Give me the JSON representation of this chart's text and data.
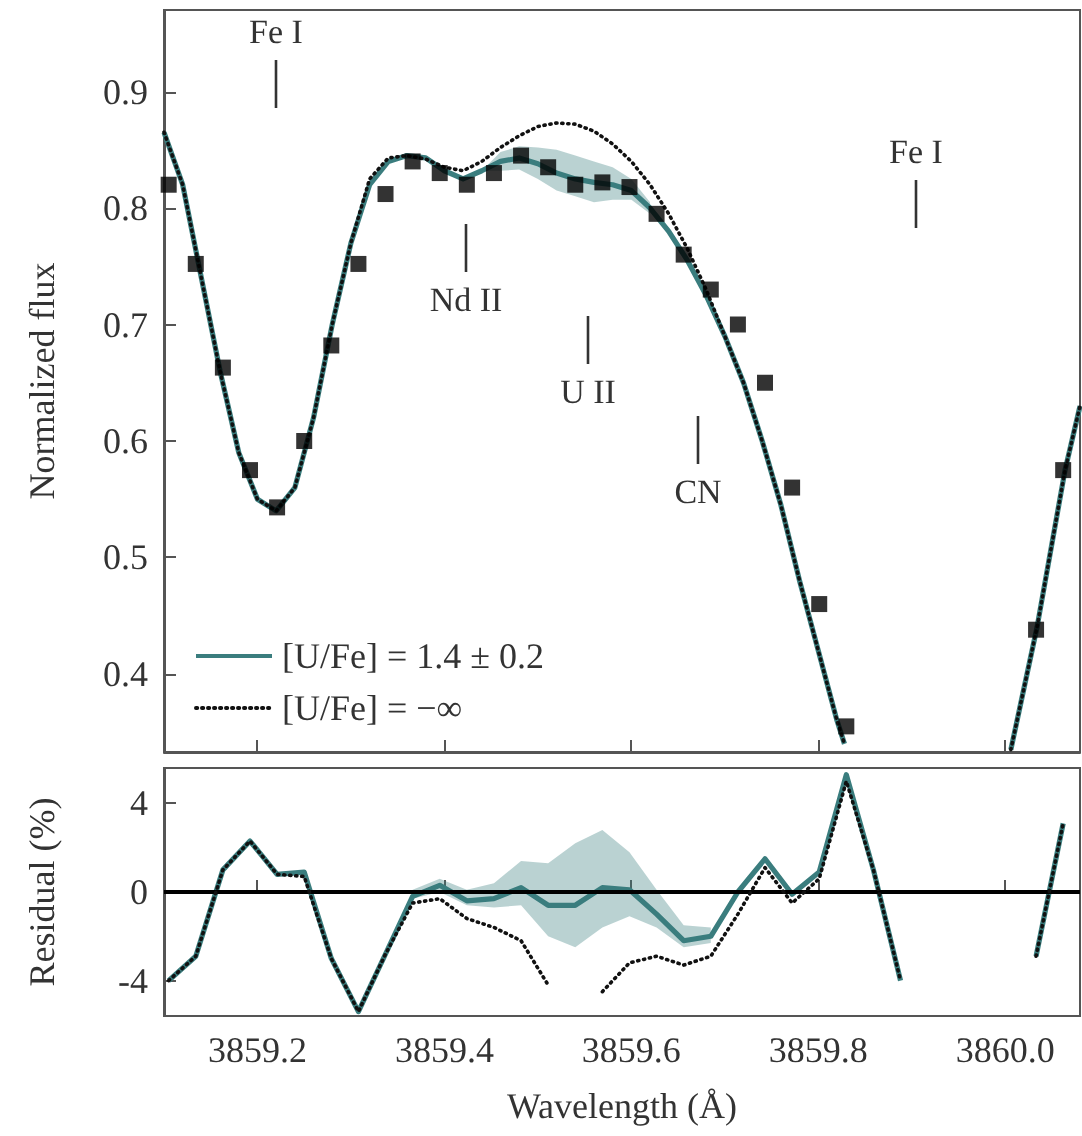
{
  "chart_data": [
    {
      "type": "line",
      "ylabel": "Normalized flux",
      "xlim": [
        3859.1,
        3860.08
      ],
      "ylim": [
        0.333,
        0.97
      ],
      "xticks": [
        3859.2,
        3859.4,
        3859.6,
        3859.8,
        3860
      ],
      "yticks": [
        0.4,
        0.5,
        0.6,
        0.7,
        0.8,
        0.9
      ],
      "tick_labels": "y",
      "legend": "bottom left",
      "grid": false,
      "annotations": [
        "Fe I",
        "Nd II",
        "U II",
        "CN",
        "Fe I"
      ],
      "series": [
        {
          "name": "[U/Fe] = 1.4 ± 0.2",
          "type": "line",
          "color": "#3a7d7e",
          "marker": "none",
          "line_style": "solid",
          "x": [
            3859.1,
            3859.12,
            3859.14,
            3859.16,
            3859.18,
            3859.2,
            3859.22,
            3859.24,
            3859.26,
            3859.28,
            3859.3,
            3859.32,
            3859.34,
            3859.36,
            3859.38,
            3859.4,
            3859.42,
            3859.44,
            3859.46,
            3859.48,
            3859.5,
            3859.52,
            3859.54,
            3859.56,
            3859.58,
            3859.6,
            3859.62,
            3859.64,
            3859.66,
            3859.68,
            3859.7,
            3859.72,
            3859.74,
            3859.76,
            3859.78,
            3859.8,
            3859.82,
            3859.828,
            3859.9,
            3860.006,
            3860.034,
            3860.064,
            3860.08
          ],
          "values": [
            0.865,
            0.82,
            0.74,
            0.66,
            0.59,
            0.55,
            0.54,
            0.56,
            0.62,
            0.7,
            0.77,
            0.82,
            0.84,
            0.845,
            0.843,
            0.832,
            0.825,
            0.832,
            0.84,
            0.843,
            0.838,
            0.83,
            0.825,
            0.822,
            0.82,
            0.815,
            0.8,
            0.78,
            0.755,
            0.725,
            0.69,
            0.65,
            0.6,
            0.545,
            0.48,
            0.42,
            0.36,
            0.34,
            null,
            0.335,
            0.44,
            0.575,
            0.63
          ],
          "lower": [
            null,
            null,
            null,
            null,
            null,
            null,
            null,
            null,
            null,
            null,
            null,
            null,
            null,
            null,
            null,
            null,
            null,
            0.832,
            0.832,
            0.833,
            0.825,
            0.815,
            0.81,
            0.805,
            0.807,
            0.807,
            0.795,
            null,
            null,
            null,
            null,
            null,
            null,
            null,
            null,
            null,
            null,
            null,
            null,
            null,
            null,
            null,
            null
          ],
          "upper": [
            null,
            null,
            null,
            null,
            null,
            null,
            null,
            null,
            null,
            null,
            null,
            null,
            null,
            null,
            null,
            null,
            null,
            0.832,
            0.848,
            0.853,
            0.852,
            0.85,
            0.845,
            0.84,
            0.835,
            0.825,
            0.805,
            null,
            null,
            null,
            null,
            null,
            null,
            null,
            null,
            null,
            null,
            null,
            null,
            null,
            null,
            null,
            null
          ]
        },
        {
          "name": "[U/Fe] = −∞",
          "type": "line",
          "color": "#111111",
          "marker": "none",
          "line_style": "dotted",
          "x": [
            3859.1,
            3859.12,
            3859.14,
            3859.16,
            3859.18,
            3859.2,
            3859.22,
            3859.24,
            3859.26,
            3859.28,
            3859.3,
            3859.32,
            3859.34,
            3859.36,
            3859.38,
            3859.4,
            3859.42,
            3859.44,
            3859.46,
            3859.48,
            3859.5,
            3859.52,
            3859.54,
            3859.56,
            3859.58,
            3859.6,
            3859.62,
            3859.64,
            3859.66,
            3859.68,
            3859.7,
            3859.72,
            3859.74,
            3859.76,
            3859.78,
            3859.8,
            3859.82,
            3859.828,
            3859.9,
            3860.006,
            3860.034,
            3860.064,
            3860.08
          ],
          "values": [
            0.865,
            0.82,
            0.74,
            0.66,
            0.59,
            0.55,
            0.54,
            0.56,
            0.62,
            0.7,
            0.77,
            0.825,
            0.843,
            0.845,
            0.842,
            0.835,
            0.832,
            0.84,
            0.852,
            0.862,
            0.87,
            0.873,
            0.872,
            0.866,
            0.855,
            0.84,
            0.82,
            0.795,
            0.765,
            0.73,
            0.69,
            0.65,
            0.6,
            0.545,
            0.48,
            0.42,
            0.36,
            0.34,
            null,
            0.335,
            0.44,
            0.575,
            0.63
          ]
        },
        {
          "type": "scatter",
          "color": "#000000",
          "marker": "square",
          "x": [
            3859.105,
            3859.134,
            3859.163,
            3859.192,
            3859.221,
            3859.25,
            3859.279,
            3859.308,
            3859.337,
            3859.366,
            3859.395,
            3859.424,
            3859.453,
            3859.482,
            3859.511,
            3859.54,
            3859.569,
            3859.598,
            3859.627,
            3859.656,
            3859.685,
            3859.714,
            3859.743,
            3859.772,
            3859.801,
            3859.83,
            3860.033,
            3860.062
          ],
          "values": [
            0.82,
            0.752,
            0.663,
            0.575,
            0.543,
            0.6,
            0.682,
            0.752,
            0.812,
            0.84,
            0.83,
            0.82,
            0.83,
            0.845,
            0.835,
            0.82,
            0.822,
            0.818,
            0.795,
            0.76,
            0.73,
            0.7,
            0.65,
            0.56,
            0.46,
            0.355,
            0.438,
            0.575
          ]
        }
      ]
    },
    {
      "type": "line",
      "xlabel": "Wavelength (Å)",
      "ylabel": "Residual (%)",
      "xlim": [
        3859.1,
        3860.08
      ],
      "ylim": [
        -5.6,
        5.6
      ],
      "xticks": [
        3859.2,
        3859.4,
        3859.6,
        3859.8,
        {
          "value": 3860,
          "label": "3860.0"
        }
      ],
      "yticks": [
        -4,
        0,
        4
      ],
      "grid": false,
      "ref_lines": [
        {
          "axis": "y",
          "value": 0,
          "color": "#000000"
        }
      ],
      "x": [
        3859.105,
        3859.134,
        3859.163,
        3859.192,
        3859.221,
        3859.25,
        3859.279,
        3859.308,
        3859.337,
        3859.366,
        3859.395,
        3859.424,
        3859.453,
        3859.482,
        3859.511,
        3859.54,
        3859.569,
        3859.598,
        3859.627,
        3859.656,
        3859.685,
        3859.714,
        3859.743,
        3859.772,
        3859.801,
        3859.83,
        3859.859,
        3859.888,
        3859.917,
        3859.946,
        3859.975,
        3860.004,
        3860.033,
        3860.062
      ],
      "series": [
        {
          "color": "#111111",
          "marker": "none",
          "line_style": "dotted",
          "values": [
            -4,
            -2.9,
            1,
            2.3,
            0.8,
            0.7,
            -3,
            -5.4,
            -2.8,
            -0.5,
            -0.3,
            -1.2,
            -1.6,
            -2.2,
            -4.2,
            null,
            -4.5,
            -3.2,
            -2.9,
            -3.3,
            -2.9,
            -1,
            1.1,
            -0.5,
            0.6,
            5,
            1,
            -4,
            null,
            null,
            null,
            null,
            -2.9,
            3.1
          ]
        },
        {
          "color": "#3a7d7e",
          "marker": "none",
          "line_style": "solid",
          "values": [
            -4,
            -2.9,
            1,
            2.3,
            0.8,
            0.9,
            -3,
            -5.4,
            -2.8,
            -0.2,
            0.3,
            -0.4,
            -0.3,
            0.2,
            -0.6,
            -0.6,
            0.2,
            0.1,
            -1,
            -2.2,
            -2,
            0,
            1.5,
            -0.1,
            0.9,
            5.3,
            1,
            -4,
            null,
            null,
            null,
            null,
            -2.9,
            3.1
          ],
          "lower": [
            null,
            null,
            null,
            null,
            null,
            null,
            null,
            null,
            null,
            -0.3,
            0,
            -0.6,
            -0.7,
            -0.6,
            -2,
            -2.5,
            -1.6,
            -1.1,
            -1.6,
            -2.5,
            -2.3,
            null,
            null,
            null,
            null,
            null,
            null,
            null,
            null,
            null,
            null,
            null,
            null,
            null
          ],
          "upper": [
            null,
            null,
            null,
            null,
            null,
            null,
            null,
            null,
            null,
            0.1,
            0.6,
            0.1,
            0.4,
            1.4,
            1.3,
            2.2,
            2.8,
            1.8,
            0.1,
            -1.5,
            -1.6,
            null,
            null,
            null,
            null,
            null,
            null,
            null,
            null,
            null,
            null,
            null,
            null,
            null
          ]
        }
      ]
    }
  ]
}
